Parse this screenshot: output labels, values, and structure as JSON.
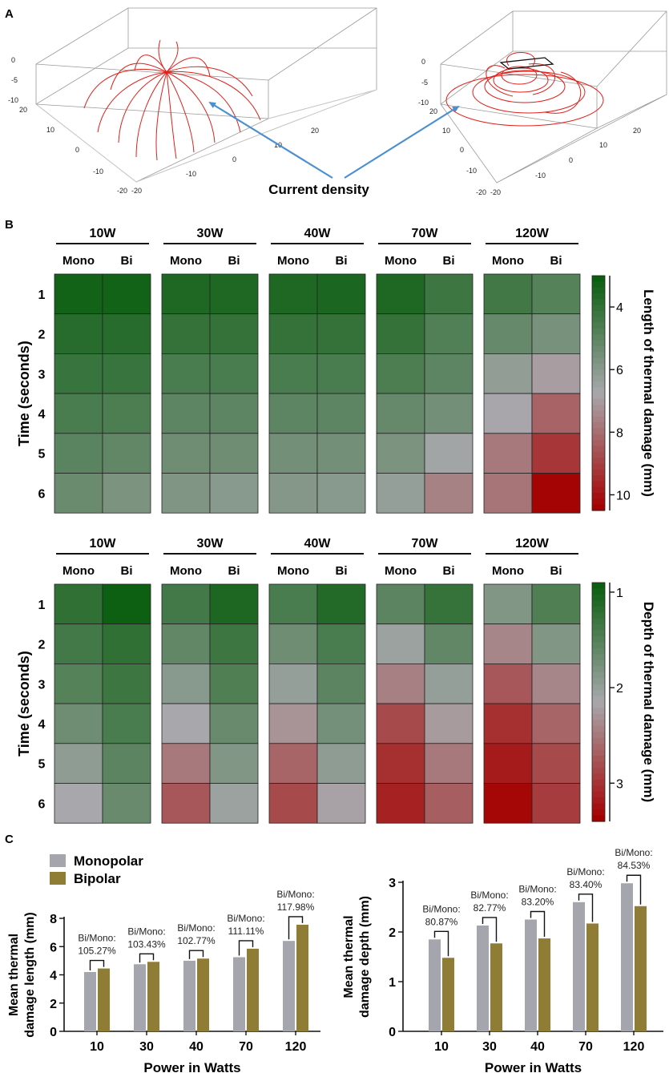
{
  "panels": {
    "a": "A",
    "b": "B",
    "c": "C"
  },
  "panel_a": {
    "annotation": "Current density",
    "plot1": {
      "z_ticks": [
        "0",
        "-5",
        "-10"
      ],
      "left_ticks": [
        "20",
        "10",
        "0",
        "-10",
        "-20"
      ],
      "front_ticks": [
        "-20",
        "-10",
        "0",
        "10",
        "20"
      ]
    },
    "plot2": {
      "z_ticks": [
        "0",
        "-5",
        "-10"
      ],
      "left_ticks": [
        "20",
        "10",
        "0",
        "-10",
        "-20"
      ],
      "front_ticks": [
        "-20",
        "-10",
        "0",
        "10",
        "20"
      ]
    }
  },
  "colors": {
    "green": "#0a5e0f",
    "mid": "#a8a8ac",
    "red": "#a50000",
    "arrow": "#4a90d0",
    "streamline": "#e0201a",
    "monopolar": "#a5a5ad",
    "bipolar": "#8f7d36"
  },
  "chart_data": [
    {
      "type": "heatmap",
      "title": "Length of thermal damage (mm)",
      "ylabel": "Time (seconds)",
      "rows": [
        "1",
        "2",
        "3",
        "4",
        "5",
        "6"
      ],
      "groups": [
        "10W",
        "30W",
        "40W",
        "70W",
        "120W"
      ],
      "subgroups": [
        "Mono",
        "Bi"
      ],
      "colorbar": {
        "min": 3,
        "max": 10.5,
        "ticks": [
          "4",
          "6",
          "8",
          "10"
        ],
        "low_color": "green",
        "high_color": "red"
      },
      "values": [
        [
          [
            3.2,
            3.2
          ],
          [
            3.5,
            3.5
          ],
          [
            3.5,
            3.4
          ],
          [
            3.5,
            4.2
          ],
          [
            4.3,
            4.8
          ]
        ],
        [
          [
            3.7,
            3.7
          ],
          [
            4.0,
            4.0
          ],
          [
            4.0,
            4.0
          ],
          [
            4.0,
            4.7
          ],
          [
            5.2,
            5.6
          ]
        ],
        [
          [
            4.1,
            4.1
          ],
          [
            4.5,
            4.5
          ],
          [
            4.5,
            4.5
          ],
          [
            4.6,
            5.0
          ],
          [
            6.2,
            7.0
          ]
        ],
        [
          [
            4.5,
            4.6
          ],
          [
            5.0,
            5.0
          ],
          [
            5.0,
            5.0
          ],
          [
            5.2,
            5.5
          ],
          [
            6.8,
            8.3
          ]
        ],
        [
          [
            4.9,
            5.1
          ],
          [
            5.4,
            5.4
          ],
          [
            5.5,
            5.5
          ],
          [
            5.7,
            6.6
          ],
          [
            7.8,
            9.3
          ]
        ],
        [
          [
            5.3,
            5.7
          ],
          [
            5.8,
            6.0
          ],
          [
            5.9,
            6.0
          ],
          [
            6.3,
            7.6
          ],
          [
            7.9,
            10.4
          ]
        ]
      ]
    },
    {
      "type": "heatmap",
      "title": "Depth of thermal damage (mm)",
      "ylabel": "Time (seconds)",
      "rows": [
        "1",
        "2",
        "3",
        "4",
        "5",
        "6"
      ],
      "groups": [
        "10W",
        "30W",
        "40W",
        "70W",
        "120W"
      ],
      "subgroups": [
        "Mono",
        "Bi"
      ],
      "colorbar": {
        "min": 0.9,
        "max": 3.4,
        "ticks": [
          "1",
          "2",
          "3"
        ],
        "low_color": "green",
        "high_color": "red"
      },
      "values": [
        [
          [
            1.2,
            0.92
          ],
          [
            1.35,
            1.05
          ],
          [
            1.4,
            1.1
          ],
          [
            1.55,
            1.25
          ],
          [
            1.85,
            1.45
          ]
        ],
        [
          [
            1.35,
            1.2
          ],
          [
            1.6,
            1.3
          ],
          [
            1.7,
            1.4
          ],
          [
            2.05,
            1.6
          ],
          [
            2.4,
            1.85
          ]
        ],
        [
          [
            1.5,
            1.3
          ],
          [
            1.9,
            1.45
          ],
          [
            2.0,
            1.55
          ],
          [
            2.45,
            2.0
          ],
          [
            2.75,
            2.4
          ]
        ],
        [
          [
            1.7,
            1.4
          ],
          [
            2.15,
            1.65
          ],
          [
            2.3,
            1.75
          ],
          [
            2.85,
            2.25
          ],
          [
            3.05,
            2.65
          ]
        ],
        [
          [
            1.95,
            1.55
          ],
          [
            2.5,
            1.85
          ],
          [
            2.65,
            1.95
          ],
          [
            3.05,
            2.5
          ],
          [
            3.2,
            2.85
          ]
        ],
        [
          [
            2.15,
            1.65
          ],
          [
            2.75,
            2.05
          ],
          [
            2.85,
            2.2
          ],
          [
            3.15,
            2.7
          ],
          [
            3.35,
            2.95
          ]
        ]
      ]
    },
    {
      "type": "bar",
      "legend": [
        "Monopolar",
        "Bipolar"
      ],
      "categories": [
        "10",
        "30",
        "40",
        "70",
        "120"
      ],
      "series": [
        {
          "name": "Monopolar",
          "values": [
            4.2,
            4.75,
            5.0,
            5.25,
            6.4
          ]
        },
        {
          "name": "Bipolar",
          "values": [
            4.45,
            4.92,
            5.15,
            5.85,
            7.55
          ]
        }
      ],
      "annotation_prefix": "Bi/Mono:",
      "ratios": [
        "105.27%",
        "103.43%",
        "102.77%",
        "111.11%",
        "117.98%"
      ],
      "xlabel": "Power in Watts",
      "ylabel_lines": [
        "Mean thermal",
        "damage length (mm)"
      ],
      "ylim": [
        0,
        8
      ],
      "yticks": [
        "0",
        "2",
        "4",
        "6",
        "8"
      ]
    },
    {
      "type": "bar",
      "categories": [
        "10",
        "30",
        "40",
        "70",
        "120"
      ],
      "series": [
        {
          "name": "Monopolar",
          "values": [
            1.85,
            2.13,
            2.25,
            2.6,
            2.98
          ]
        },
        {
          "name": "Bipolar",
          "values": [
            1.48,
            1.77,
            1.87,
            2.17,
            2.52
          ]
        }
      ],
      "annotation_prefix": "Bi/Mono:",
      "ratios": [
        "80.87%",
        "82.77%",
        "83.20%",
        "83.40%",
        "84.53%"
      ],
      "xlabel": "Power in Watts",
      "ylabel_lines": [
        "Mean thermal",
        "damage depth (mm)"
      ],
      "ylim": [
        0,
        3
      ],
      "yticks": [
        "0",
        "1",
        "2",
        "3"
      ]
    }
  ]
}
